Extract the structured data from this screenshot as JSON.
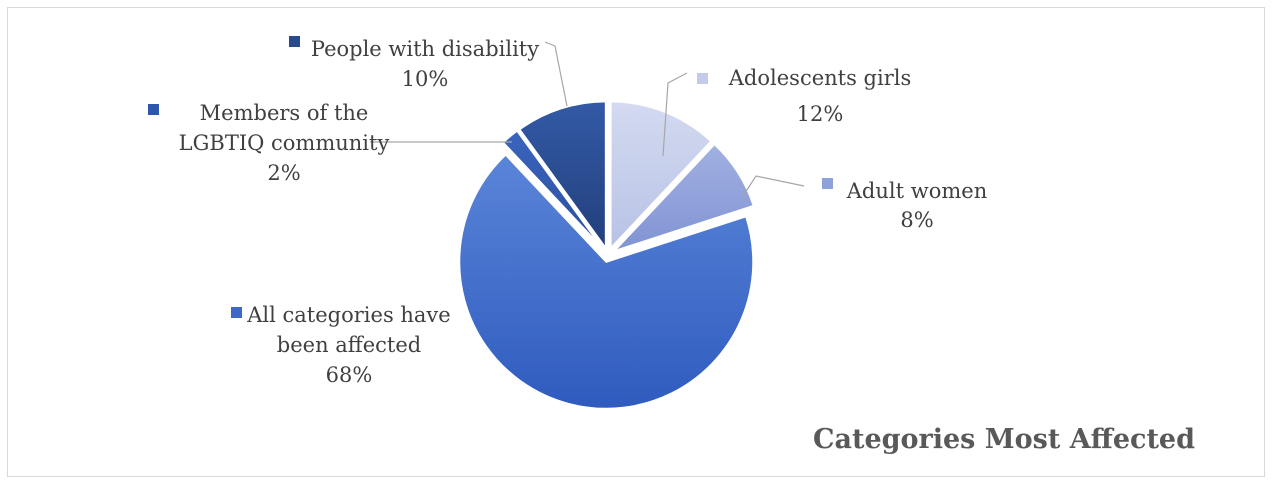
{
  "chart_data": {
    "type": "pie",
    "title": "Categories Most Affected",
    "slices": [
      {
        "label_lines": [
          "Adolescents girls"
        ],
        "value": 12,
        "value_label": "12%",
        "color": "#c3cbe9"
      },
      {
        "label_lines": [
          "Adult women"
        ],
        "value": 8,
        "value_label": "8%",
        "color": "#8fa1da"
      },
      {
        "label_lines": [
          "All categories have",
          "been affected"
        ],
        "value": 68,
        "value_label": "68%",
        "color": "#3c68c7"
      },
      {
        "label_lines": [
          "Members of the",
          "LGBTIQ community"
        ],
        "value": 2,
        "value_label": "2%",
        "color": "#2e56ad"
      },
      {
        "label_lines": [
          "People with disability"
        ],
        "value": 10,
        "value_label": "10%",
        "color": "#284b8e"
      }
    ]
  }
}
